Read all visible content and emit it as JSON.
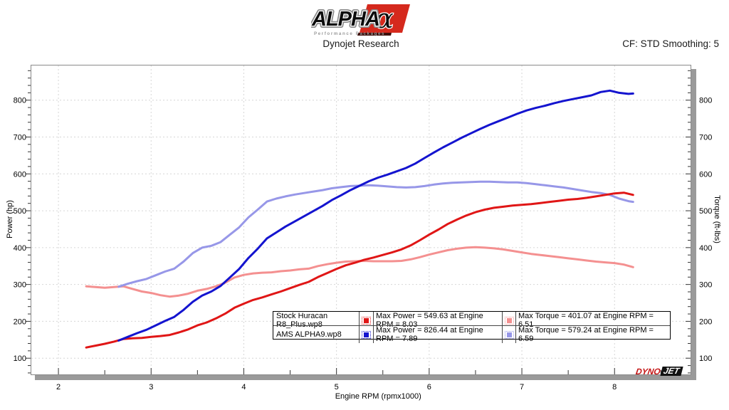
{
  "header": {
    "logo": {
      "brand": "ALPHA",
      "alpha": "α",
      "tagline": "Performance Packages"
    },
    "subtitle": "Dynojet Research",
    "correction": "CF: STD Smoothing: 5"
  },
  "watermark": {
    "dyno": "DYNO",
    "jet": "JET"
  },
  "legend": {
    "rows": [
      {
        "name": "Stock Huracan R8_Plus.wp8",
        "power": "Max Power = 549.63 at Engine RPM = 8.03",
        "torque": "Max Torque = 401.07 at Engine RPM = 6.51"
      },
      {
        "name": "AMS ALPHA9.wp8",
        "power": "Max Power = 826.44 at Engine RPM = 7.89",
        "torque": "Max Torque = 579.24 at Engine RPM = 6.59"
      }
    ]
  },
  "colors": {
    "grid": "#d6d6d6",
    "frame": "#8a8a8a",
    "shadow": "#9a9a9a",
    "tick": "#333333",
    "logo_red": "#d5291d",
    "logo_dark": "#3c0f0a",
    "tagline_gray": "#9b9b9b"
  },
  "chart_data": {
    "type": "line",
    "title": "",
    "xlabel": "Engine RPM (rpmx1000)",
    "ylabel_left": "Power (hp)",
    "ylabel_right": "Torque (ft-lbs)",
    "xlim": [
      1.7,
      8.82
    ],
    "ylim": [
      56,
      896
    ],
    "x_major_ticks": [
      2,
      3,
      4,
      5,
      6,
      7,
      8
    ],
    "x_minor_ticks": [
      2.5,
      3.5,
      4.5,
      5.5,
      6.5,
      7.5,
      8.5
    ],
    "y_major_ticks": [
      100,
      200,
      300,
      400,
      500,
      600,
      700,
      800
    ],
    "y_minor_step": 20,
    "grid": "dashed-at-major-ticks",
    "legend_position": "bottom-center",
    "series": [
      {
        "id": "stock-torque",
        "name": "Stock Huracan R8_Plus.wp8 Torque (ft-lbs)",
        "color": "#f49090",
        "max_label": "Max Torque = 401.07 at Engine RPM = 6.51",
        "x": [
          2.3,
          2.4,
          2.5,
          2.6,
          2.7,
          2.8,
          2.9,
          3.0,
          3.1,
          3.2,
          3.3,
          3.4,
          3.5,
          3.6,
          3.7,
          3.8,
          3.9,
          4.0,
          4.1,
          4.2,
          4.3,
          4.4,
          4.5,
          4.6,
          4.7,
          4.8,
          4.9,
          5.0,
          5.1,
          5.2,
          5.3,
          5.4,
          5.5,
          5.6,
          5.7,
          5.8,
          5.9,
          6.0,
          6.1,
          6.2,
          6.3,
          6.4,
          6.5,
          6.6,
          6.7,
          6.8,
          6.9,
          7.0,
          7.1,
          7.2,
          7.3,
          7.4,
          7.5,
          7.6,
          7.7,
          7.8,
          7.9,
          8.0,
          8.1,
          8.2
        ],
        "y": [
          295,
          293,
          291,
          293,
          295,
          288,
          281,
          277,
          271,
          267,
          270,
          275,
          283,
          288,
          295,
          305,
          319,
          326,
          330,
          332,
          333,
          336,
          338,
          341,
          343,
          350,
          355,
          359,
          362,
          363,
          364,
          363,
          363,
          363,
          364,
          368,
          374,
          381,
          387,
          393,
          397,
          400,
          401,
          400,
          398,
          395,
          391,
          387,
          383,
          380,
          377,
          374,
          371,
          368,
          365,
          362,
          360,
          358,
          354,
          347
        ]
      },
      {
        "id": "ams-torque",
        "name": "AMS ALPHA9.wp8 Torque (ft-lbs)",
        "color": "#9797e8",
        "max_label": "Max Torque = 579.24 at Engine RPM = 6.59",
        "x": [
          2.65,
          2.75,
          2.85,
          2.95,
          3.05,
          3.15,
          3.25,
          3.35,
          3.45,
          3.55,
          3.65,
          3.75,
          3.85,
          3.95,
          4.05,
          4.15,
          4.25,
          4.35,
          4.45,
          4.55,
          4.65,
          4.75,
          4.85,
          4.95,
          5.05,
          5.15,
          5.25,
          5.35,
          5.45,
          5.55,
          5.65,
          5.75,
          5.85,
          5.95,
          6.05,
          6.15,
          6.25,
          6.35,
          6.45,
          6.55,
          6.65,
          6.75,
          6.85,
          6.95,
          7.05,
          7.15,
          7.25,
          7.35,
          7.45,
          7.55,
          7.65,
          7.75,
          7.85,
          7.95,
          8.05,
          8.15,
          8.2
        ],
        "y": [
          294,
          302,
          309,
          315,
          325,
          335,
          343,
          362,
          385,
          400,
          405,
          415,
          435,
          455,
          482,
          503,
          525,
          533,
          539,
          544,
          548,
          552,
          556,
          561,
          564,
          567,
          568,
          569,
          568,
          566,
          564,
          563,
          564,
          567,
          571,
          574,
          576,
          577,
          578,
          579,
          579,
          578,
          577,
          577,
          575,
          572,
          569,
          566,
          563,
          559,
          555,
          551,
          548,
          543,
          533,
          526,
          524
        ]
      },
      {
        "id": "stock-power",
        "name": "Stock Huracan R8_Plus.wp8 Power (hp)",
        "color": "#e01616",
        "max_label": "Max Power = 549.63 at Engine RPM = 8.03",
        "x": [
          2.3,
          2.4,
          2.5,
          2.6,
          2.7,
          2.8,
          2.9,
          3.0,
          3.1,
          3.2,
          3.3,
          3.4,
          3.5,
          3.6,
          3.7,
          3.8,
          3.9,
          4.0,
          4.1,
          4.2,
          4.3,
          4.4,
          4.5,
          4.6,
          4.7,
          4.8,
          4.9,
          5.0,
          5.1,
          5.2,
          5.3,
          5.4,
          5.5,
          5.6,
          5.7,
          5.8,
          5.9,
          6.0,
          6.1,
          6.2,
          6.3,
          6.4,
          6.5,
          6.6,
          6.7,
          6.8,
          6.9,
          7.0,
          7.1,
          7.2,
          7.3,
          7.4,
          7.5,
          7.6,
          7.7,
          7.8,
          7.9,
          8.0,
          8.1,
          8.2
        ],
        "y": [
          129,
          134,
          139,
          145,
          152,
          154,
          155,
          158,
          160,
          163,
          170,
          178,
          189,
          197,
          208,
          221,
          237,
          248,
          258,
          265,
          273,
          281,
          290,
          299,
          307,
          320,
          331,
          342,
          352,
          359,
          367,
          373,
          380,
          387,
          395,
          406,
          420,
          435,
          449,
          464,
          476,
          487,
          496,
          503,
          508,
          511,
          514,
          516,
          518,
          521,
          524,
          527,
          530,
          532,
          535,
          539,
          543,
          547,
          549,
          543
        ]
      },
      {
        "id": "ams-power",
        "name": "AMS ALPHA9.wp8 Power (hp)",
        "color": "#1414cf",
        "max_label": "Max Power = 826.44 at Engine RPM = 7.89",
        "x": [
          2.65,
          2.75,
          2.85,
          2.95,
          3.05,
          3.15,
          3.25,
          3.35,
          3.45,
          3.55,
          3.65,
          3.75,
          3.85,
          3.95,
          4.05,
          4.15,
          4.25,
          4.35,
          4.45,
          4.55,
          4.65,
          4.75,
          4.85,
          4.95,
          5.05,
          5.15,
          5.25,
          5.35,
          5.45,
          5.55,
          5.65,
          5.75,
          5.85,
          5.95,
          6.05,
          6.15,
          6.25,
          6.35,
          6.45,
          6.55,
          6.65,
          6.75,
          6.85,
          6.95,
          7.05,
          7.15,
          7.25,
          7.35,
          7.45,
          7.55,
          7.65,
          7.75,
          7.85,
          7.95,
          8.05,
          8.15,
          8.2
        ],
        "y": [
          148,
          158,
          168,
          177,
          189,
          201,
          212,
          231,
          253,
          270,
          281,
          296,
          319,
          342,
          372,
          397,
          425,
          441,
          457,
          471,
          485,
          499,
          513,
          529,
          542,
          556,
          568,
          580,
          590,
          598,
          607,
          616,
          628,
          643,
          658,
          672,
          685,
          698,
          710,
          722,
          733,
          743,
          753,
          763,
          772,
          779,
          785,
          792,
          798,
          803,
          808,
          813,
          822,
          826,
          820,
          817,
          818
        ]
      }
    ]
  }
}
